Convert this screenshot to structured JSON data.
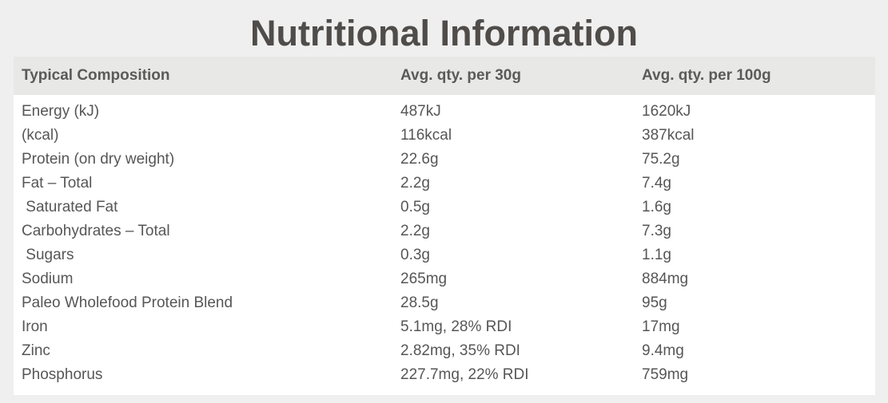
{
  "title": "Nutritional Information",
  "table": {
    "headers": [
      "Typical Composition",
      "Avg. qty. per 30g",
      "Avg. qty. per 100g"
    ],
    "rows": [
      [
        "Energy (kJ)",
        "487kJ",
        "1620kJ"
      ],
      [
        "(kcal)",
        "116kcal",
        "387kcal"
      ],
      [
        "Protein (on dry weight)",
        "22.6g",
        "75.2g"
      ],
      [
        "Fat – Total",
        "2.2g",
        "7.4g"
      ],
      [
        " Saturated Fat",
        "0.5g",
        "1.6g"
      ],
      [
        "Carbohydrates – Total",
        "2.2g",
        "7.3g"
      ],
      [
        " Sugars",
        "0.3g",
        "1.1g"
      ],
      [
        "Sodium",
        "265mg",
        "884mg"
      ],
      [
        "Paleo Wholefood Protein Blend",
        "28.5g",
        "95g"
      ],
      [
        "Iron",
        "5.1mg, 28% RDI",
        "17mg"
      ],
      [
        "Zinc",
        "2.82mg, 35% RDI",
        "9.4mg"
      ],
      [
        "Phosphorus",
        "227.7mg, 22% RDI",
        "759mg"
      ]
    ]
  },
  "colors": {
    "page_background": "#efefef",
    "header_background": "#e8e8e7",
    "table_background": "#ffffff",
    "title_text": "#4f4c49",
    "body_text": "#565656"
  }
}
